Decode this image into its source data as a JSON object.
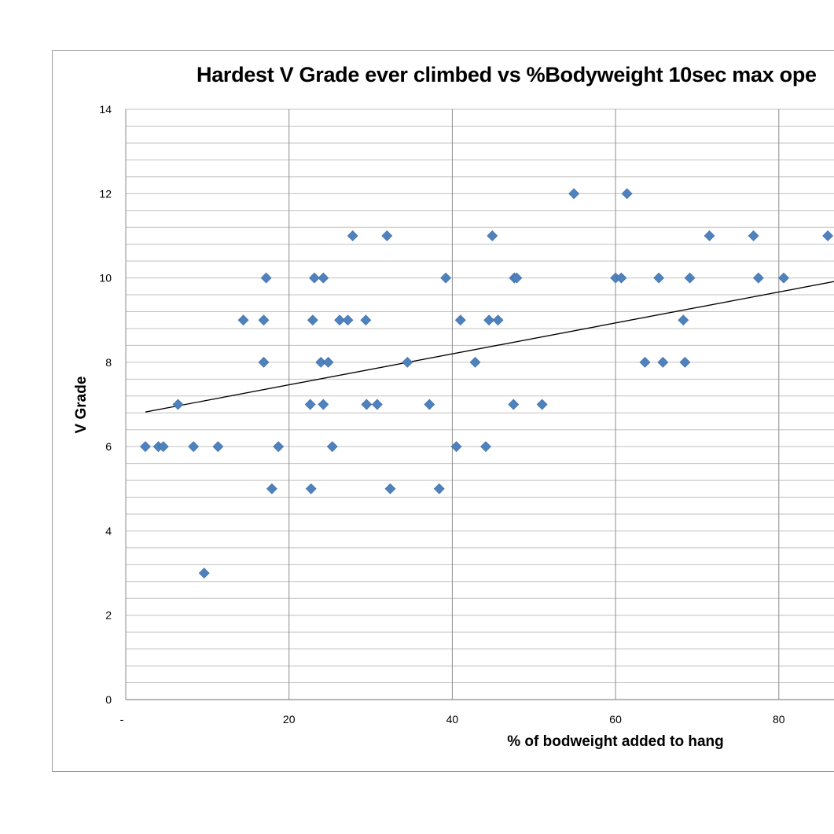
{
  "chart_data": {
    "type": "scatter",
    "title": "Hardest V Grade ever climbed vs %Bodyweight 10sec max ope",
    "xlabel": "% of bodweight added to hang",
    "ylabel": "V Grade",
    "xlim": [
      0,
      100
    ],
    "ylim": [
      0,
      14
    ],
    "x_ticks": [
      "-",
      "20",
      "40",
      "60",
      "80"
    ],
    "y_ticks": [
      "0",
      "2",
      "4",
      "6",
      "8",
      "10",
      "12",
      "14"
    ],
    "grid": {
      "major_y": 2,
      "minor_y": 0.4,
      "major_x": 20
    },
    "legend": "none",
    "series": [
      {
        "name": "V Grade",
        "marker": "diamond",
        "color": "#4F81BD",
        "points": [
          [
            2.4,
            6
          ],
          [
            4.0,
            6
          ],
          [
            4.6,
            6
          ],
          [
            6.4,
            7
          ],
          [
            8.3,
            6
          ],
          [
            9.6,
            3
          ],
          [
            11.3,
            6
          ],
          [
            14.4,
            9
          ],
          [
            16.9,
            8
          ],
          [
            16.9,
            9
          ],
          [
            17.2,
            10
          ],
          [
            17.9,
            5
          ],
          [
            18.7,
            6
          ],
          [
            22.6,
            7
          ],
          [
            22.7,
            5
          ],
          [
            22.9,
            9
          ],
          [
            23.1,
            10
          ],
          [
            23.9,
            8
          ],
          [
            24.2,
            7
          ],
          [
            24.2,
            10
          ],
          [
            24.8,
            8
          ],
          [
            25.3,
            6
          ],
          [
            26.2,
            9
          ],
          [
            27.2,
            9
          ],
          [
            27.8,
            11
          ],
          [
            29.4,
            9
          ],
          [
            29.5,
            7
          ],
          [
            30.8,
            7
          ],
          [
            32.0,
            11
          ],
          [
            32.4,
            5
          ],
          [
            34.5,
            8
          ],
          [
            37.2,
            7
          ],
          [
            38.4,
            5
          ],
          [
            39.2,
            10
          ],
          [
            40.5,
            6
          ],
          [
            41.0,
            9
          ],
          [
            42.8,
            8
          ],
          [
            44.1,
            6
          ],
          [
            44.5,
            9
          ],
          [
            44.9,
            11
          ],
          [
            45.6,
            9
          ],
          [
            47.5,
            7
          ],
          [
            47.6,
            10
          ],
          [
            47.9,
            10
          ],
          [
            51.0,
            7
          ],
          [
            54.9,
            12
          ],
          [
            60.0,
            10
          ],
          [
            60.7,
            10
          ],
          [
            61.4,
            12
          ],
          [
            63.6,
            8
          ],
          [
            65.3,
            10
          ],
          [
            65.8,
            8
          ],
          [
            68.3,
            9
          ],
          [
            68.5,
            8
          ],
          [
            69.1,
            10
          ],
          [
            71.5,
            11
          ],
          [
            76.9,
            11
          ],
          [
            77.5,
            10
          ],
          [
            80.6,
            10
          ],
          [
            86.0,
            11
          ]
        ]
      }
    ],
    "trendline": {
      "type": "linear",
      "x0": 2.4,
      "y0": 6.82,
      "x1": 100,
      "y1": 10.4,
      "color": "#000000"
    },
    "colors": {
      "marker": "#4F81BD",
      "grid": "#c0c0c0",
      "vgrid": "#8c8c8c",
      "frame": "#9a9a9a"
    }
  }
}
